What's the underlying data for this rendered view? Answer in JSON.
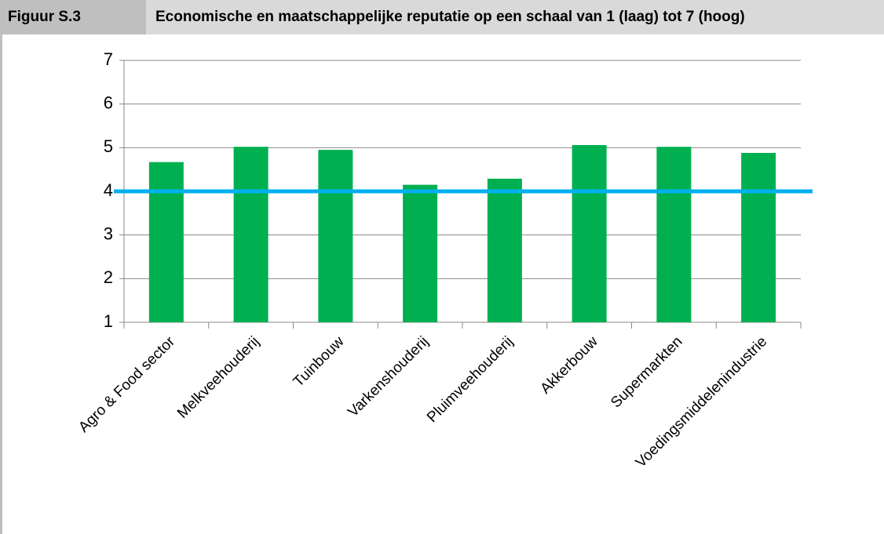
{
  "chart_data": {
    "type": "bar",
    "figure_label": "Figuur S.3",
    "title": "Economische en maatschappelijke reputatie op een schaal van 1 (laag) tot 7 (hoog)",
    "categories": [
      "Agro & Food sector",
      "Melkveehouderij",
      "Tuinbouw",
      "Varkenshouderij",
      "Pluimveehouderij",
      "Akkerbouw",
      "Supermarkten",
      "Voedingsmiddelenindustrie"
    ],
    "values": [
      4.67,
      5.02,
      4.95,
      4.15,
      4.29,
      5.06,
      5.02,
      4.88
    ],
    "color": "#00b050",
    "ylim": [
      1,
      7
    ],
    "yticks": [
      1,
      2,
      3,
      4,
      5,
      6,
      7
    ],
    "grid": true,
    "reference_line": {
      "value": 4,
      "color": "#00b0f0"
    }
  }
}
